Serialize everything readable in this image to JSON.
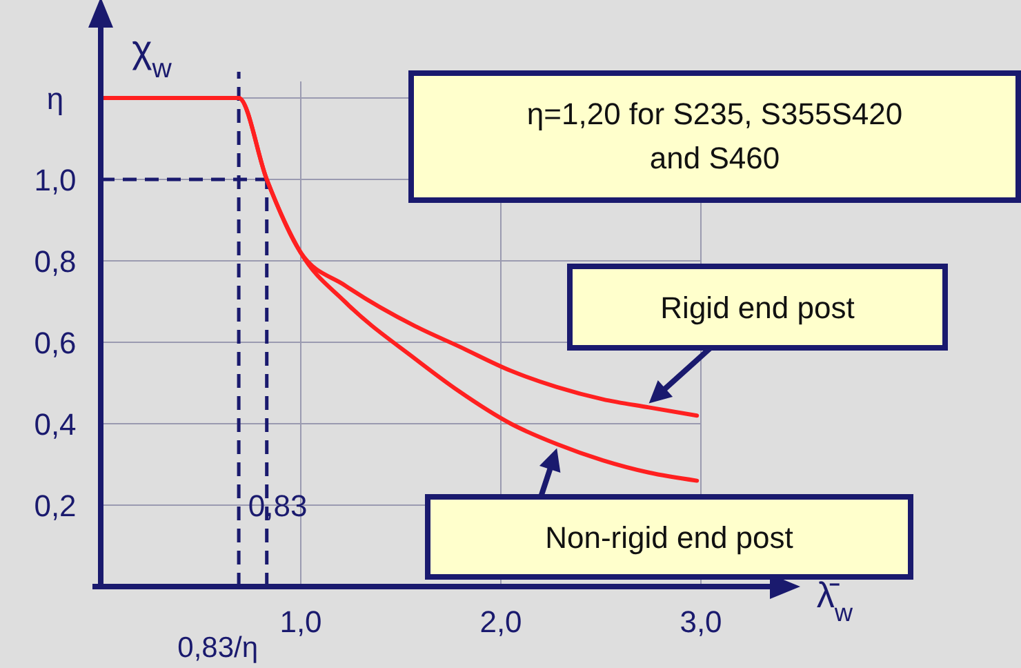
{
  "chart_data": {
    "type": "line",
    "xlabel": "λ̄$_{w}$",
    "ylabel": "χ$_{w}$",
    "x": [
      0,
      0.69,
      0.83,
      1.0,
      1.22,
      1.57,
      1.79,
      2.05,
      2.28,
      2.51,
      2.74,
      2.98
    ],
    "series": [
      {
        "color": "#ff2020",
        "values": [
          1.2,
          1.2,
          1.0,
          0.82,
          0.74,
          0.64,
          0.59,
          0.53,
          0.49,
          0.46,
          0.44,
          0.42
        ]
      },
      {
        "color": "#ff2020",
        "values": [
          1.2,
          1.2,
          1.0,
          0.82,
          0.7,
          0.56,
          0.48,
          0.4,
          0.35,
          0.31,
          0.28,
          0.26
        ]
      }
    ],
    "xlim": [
      0,
      3.4
    ],
    "ylim": [
      0,
      1.4
    ],
    "xticks": [
      {
        "value": 1,
        "label": "1,0"
      },
      {
        "value": 2,
        "label": "2,0"
      },
      {
        "value": 3,
        "label": "3,0"
      }
    ],
    "yticks": [
      {
        "value": 0.2,
        "label": "0,2"
      },
      {
        "value": 0.4,
        "label": "0,4"
      },
      {
        "value": 0.6,
        "label": "0,6"
      },
      {
        "value": 0.8,
        "label": "0,8"
      },
      {
        "value": 1.0,
        "label": "1,0"
      },
      {
        "value": 1.2,
        "label": "η"
      }
    ],
    "ref_lines": [
      {
        "axis": "x",
        "value": 0.69,
        "label": "0,83/η",
        "line_style": "dashed",
        "color": "#1a1a6e"
      },
      {
        "axis": "x",
        "value": 0.83,
        "label": "0,83",
        "line_style": "dashed",
        "color": "#1a1a6e"
      },
      {
        "axis": "y",
        "value": 1.0,
        "line_style": "dashed",
        "color": "#1a1a6e"
      }
    ],
    "annotations": [
      "η=1,20 for S235, S355S420 and S460",
      {
        "text": "Rigid end post",
        "x": 2.74,
        "y": 0.44
      },
      {
        "text": "Non-rigid end post",
        "x": 2.28,
        "y": 0.35
      }
    ],
    "grid": true,
    "marker": "none",
    "line_style": "solid"
  }
}
